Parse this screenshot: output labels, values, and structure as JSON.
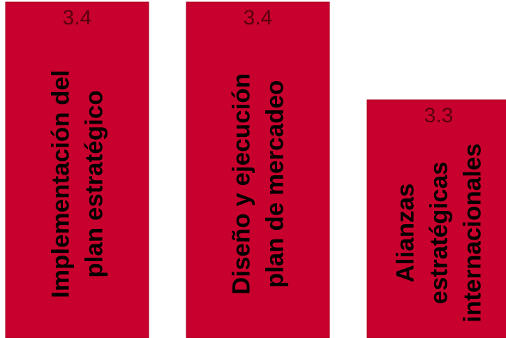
{
  "chart_data": {
    "type": "bar",
    "categories": [
      [
        "Implementación del",
        "plan estratégico"
      ],
      [
        "Diseño y ejecución",
        "plan de mercadeo"
      ],
      [
        "Alianzas",
        "estratégicas",
        "internacionales"
      ]
    ],
    "values": [
      3.4,
      3.4,
      3.3
    ],
    "value_labels": [
      "3.4",
      "3.4",
      "3.3"
    ],
    "title": "",
    "xlabel": "",
    "ylabel": "",
    "grid": false,
    "legend": "none",
    "colors": {
      "bar_fill": "#c8002d",
      "value_text": "#5a0010",
      "label_text": "#000000"
    }
  }
}
